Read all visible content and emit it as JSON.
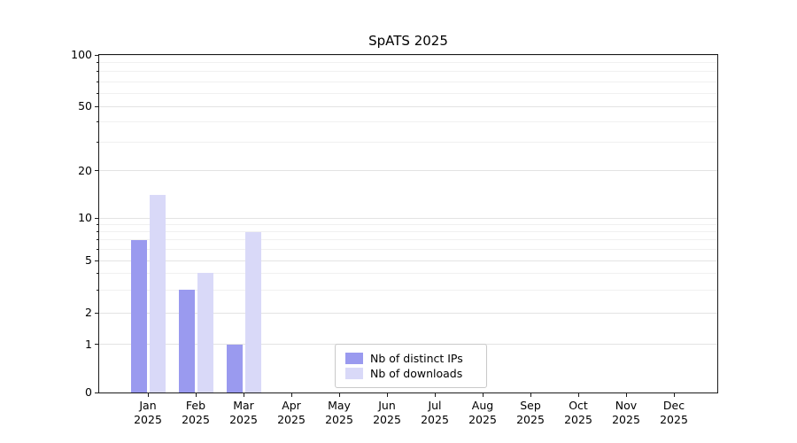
{
  "chart_data": {
    "type": "bar",
    "title": "SpATS 2025",
    "categories": [
      "Jan",
      "Feb",
      "Mar",
      "Apr",
      "May",
      "Jun",
      "Jul",
      "Aug",
      "Sep",
      "Oct",
      "Nov",
      "Dec"
    ],
    "x_axis": {
      "year_label": "2025"
    },
    "series": [
      {
        "name": "Nb of distinct IPs",
        "color": "#9a9aef",
        "values": [
          7,
          3,
          1,
          0,
          0,
          0,
          0,
          0,
          0,
          0,
          0,
          0
        ]
      },
      {
        "name": "Nb of downloads",
        "color": "#d9d9f8",
        "values": [
          14,
          4,
          8,
          0,
          0,
          0,
          0,
          0,
          0,
          0,
          0,
          0
        ]
      }
    ],
    "y_axis": {
      "ticks": [
        0,
        1,
        2,
        5,
        10,
        20,
        50,
        100
      ],
      "scale": "log-like",
      "range": [
        0,
        100
      ]
    },
    "legend": {
      "position": "lower-center"
    },
    "grid": true
  }
}
